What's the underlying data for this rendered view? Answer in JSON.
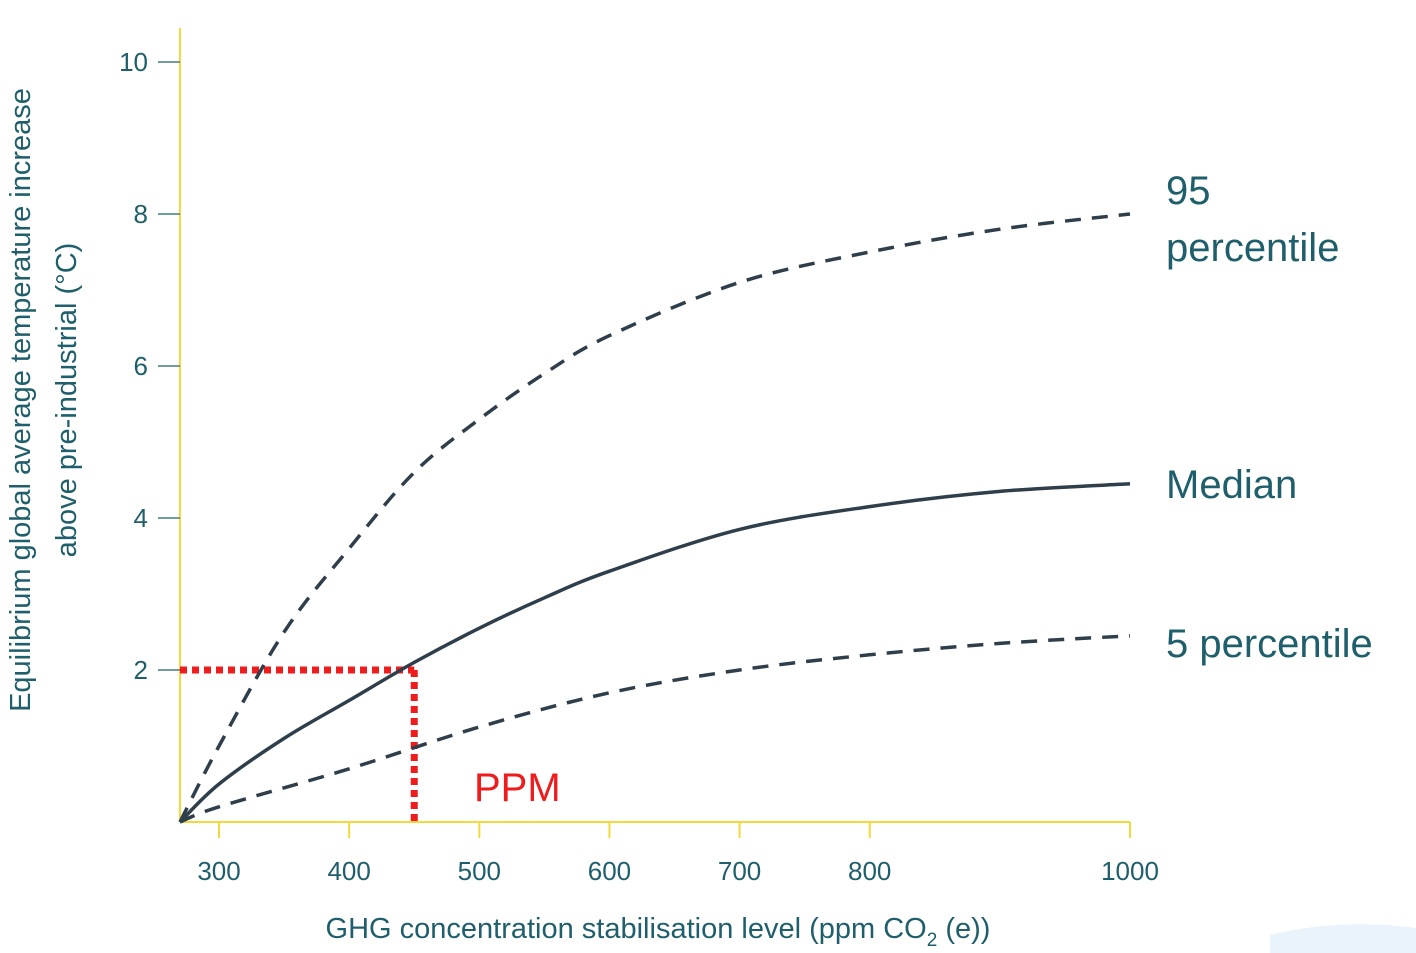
{
  "chart_data": {
    "type": "line",
    "xlabel": "GHG concentration stabilisation level (ppm CO",
    "xlabel_subscript": "2",
    "xlabel_suffix": " (e))",
    "ylabel_line1": "Equilibrium global average temperature increase",
    "ylabel_line2": "above pre-industrial (°C)",
    "xlim": [
      270,
      1000
    ],
    "ylim": [
      0,
      10
    ],
    "x_ticks": [
      300,
      400,
      500,
      600,
      700,
      800,
      1000
    ],
    "x_tick_labels": [
      "300",
      "400",
      "500",
      "600",
      "700",
      "800",
      "1000"
    ],
    "y_ticks": [
      2,
      4,
      6,
      8,
      10
    ],
    "y_tick_labels": [
      "2",
      "4",
      "6",
      "8",
      "10"
    ],
    "grid": false,
    "series": [
      {
        "name": "95 percentile",
        "label_lines": [
          "95",
          "percentile"
        ],
        "style": "dashed",
        "color": "#2f3e4b",
        "x": [
          270,
          300,
          350,
          400,
          450,
          500,
          550,
          600,
          700,
          800,
          900,
          1000
        ],
        "y": [
          0,
          1.0,
          2.5,
          3.6,
          4.6,
          5.3,
          5.9,
          6.4,
          7.1,
          7.5,
          7.8,
          8.0
        ]
      },
      {
        "name": "Median",
        "label_lines": [
          "Median"
        ],
        "style": "solid",
        "color": "#2f3e4b",
        "x": [
          270,
          300,
          350,
          400,
          450,
          500,
          550,
          600,
          700,
          800,
          900,
          1000
        ],
        "y": [
          0,
          0.5,
          1.1,
          1.6,
          2.1,
          2.55,
          2.95,
          3.3,
          3.85,
          4.15,
          4.35,
          4.45
        ]
      },
      {
        "name": "5 percentile",
        "label_lines": [
          "5 percentile"
        ],
        "style": "dashed",
        "color": "#2f3e4b",
        "x": [
          270,
          300,
          400,
          500,
          600,
          700,
          800,
          900,
          1000
        ],
        "y": [
          0,
          0.2,
          0.7,
          1.25,
          1.7,
          2.0,
          2.2,
          2.35,
          2.45
        ]
      }
    ],
    "annotations": {
      "threshold_y": 2,
      "threshold_x": 450,
      "threshold_color": "#ee1c1c",
      "threshold_label": "PPM"
    },
    "axis_color": "#f2da3c",
    "text_color": "#1f5f6b"
  }
}
